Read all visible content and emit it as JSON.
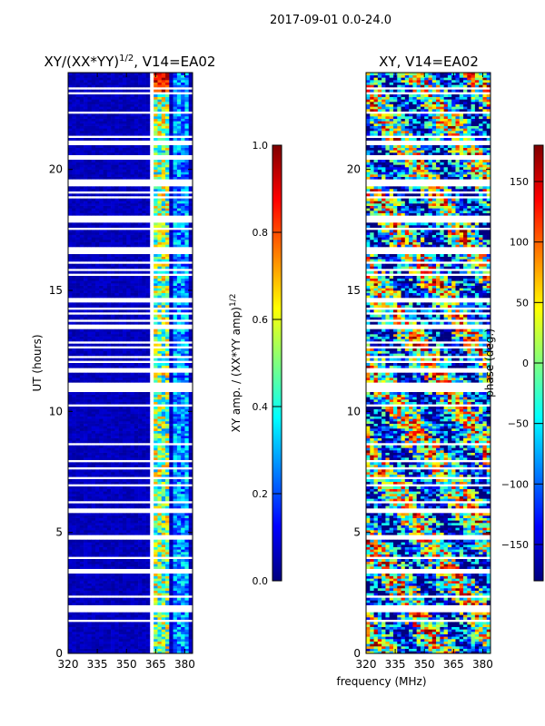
{
  "suptitle": "2017-09-01 0.0-24.0",
  "colors": {
    "jet": [
      "#00007f",
      "#0000ff",
      "#007fff",
      "#00ffff",
      "#7fff7f",
      "#ffff00",
      "#ff7f00",
      "#ff0000",
      "#7f0000"
    ],
    "axis": "#000000",
    "gap": "#ffffff"
  },
  "chart_data": [
    {
      "id": "amp",
      "type": "heatmap",
      "title_base": "XY/(XX*YY)",
      "title_sup": "1/2",
      "title_tail": ", V14=EA02",
      "xlabel": "",
      "ylabel": "UT (hours)",
      "xlim": [
        320,
        384
      ],
      "ylim": [
        0,
        24
      ],
      "xticks": [
        320,
        335,
        350,
        365,
        380
      ],
      "yticks": [
        0,
        5,
        10,
        15,
        20
      ],
      "colorbar": {
        "label_base": "XY amp. / (XX*YY amp)",
        "label_sup": "1/2",
        "range": [
          0.0,
          1.0
        ],
        "ticks": [
          "0.0",
          "0.2",
          "0.4",
          "0.6",
          "0.8",
          "1.0"
        ]
      },
      "features": {
        "bright_band_mhz": [
          363,
          372
        ],
        "secondary_band_mhz": [
          374,
          382
        ],
        "background_value": 0.05,
        "band_value": 0.55
      }
    },
    {
      "id": "phase",
      "type": "heatmap",
      "title_base": "XY, V14=EA02",
      "xlabel": "frequency (MHz)",
      "ylabel": "",
      "xlim": [
        320,
        384
      ],
      "ylim": [
        0,
        24
      ],
      "xticks": [
        320,
        335,
        350,
        365,
        380
      ],
      "yticks": [
        0,
        5,
        10,
        15,
        20
      ],
      "colorbar": {
        "label_base": "phase (deg.)",
        "range": [
          -180,
          180
        ],
        "ticks": [
          "-150",
          "-100",
          "-50",
          "0",
          "50",
          "100",
          "150"
        ]
      }
    }
  ]
}
